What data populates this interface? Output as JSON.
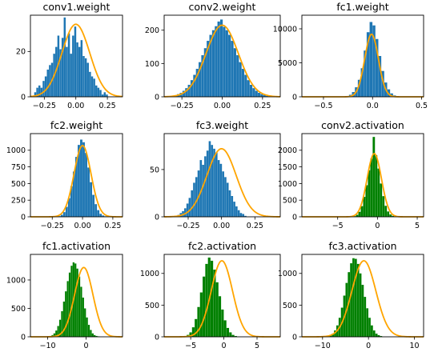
{
  "chart_data": [
    {
      "type": "bar",
      "title": "conv1.weight",
      "bar_color": "#1f77b4",
      "curve_color": "#ffa500",
      "xlim": [
        -0.36,
        0.37
      ],
      "ylim": [
        0,
        36
      ],
      "xticks": [
        -0.25,
        0.0,
        0.25
      ],
      "xtick_labels": [
        "−0.25",
        "0.00",
        "0.25"
      ],
      "yticks": [
        0,
        20
      ],
      "ytick_labels": [
        "0",
        "20"
      ],
      "bin_start": -0.33,
      "bin_width": 0.0167,
      "values": [
        2,
        4,
        5,
        4,
        7,
        9,
        12,
        14,
        15,
        19,
        22,
        27,
        21,
        26,
        35,
        22,
        28,
        19,
        27,
        31,
        24,
        22,
        25,
        18,
        17,
        15,
        11,
        9,
        8,
        5,
        4,
        3,
        1,
        2,
        1
      ],
      "curve": {
        "mean": 0.0,
        "std": 0.11,
        "peak": 32
      }
    },
    {
      "type": "bar",
      "title": "conv2.weight",
      "bar_color": "#1f77b4",
      "curve_color": "#ffa500",
      "xlim": [
        -0.36,
        0.36
      ],
      "ylim": [
        0,
        245
      ],
      "xticks": [
        -0.25,
        0.0,
        0.25
      ],
      "xtick_labels": [
        "−0.25",
        "0.00",
        "0.25"
      ],
      "yticks": [
        0,
        100,
        200
      ],
      "ytick_labels": [
        "0",
        "100",
        "200"
      ],
      "bin_start": -0.33,
      "bin_width": 0.0167,
      "values": [
        2,
        3,
        5,
        8,
        12,
        18,
        26,
        36,
        50,
        66,
        84,
        104,
        125,
        146,
        168,
        186,
        200,
        212,
        226,
        232,
        210,
        200,
        186,
        168,
        146,
        125,
        104,
        84,
        66,
        50,
        36,
        26,
        18,
        12,
        8,
        5,
        3,
        2,
        1
      ],
      "curve": {
        "mean": 0.0,
        "std": 0.1,
        "peak": 215
      }
    },
    {
      "type": "bar",
      "title": "fc1.weight",
      "bar_color": "#1f77b4",
      "curve_color": "#ffa500",
      "xlim": [
        -0.72,
        0.52
      ],
      "ylim": [
        0,
        12000
      ],
      "xticks": [
        -0.5,
        0.0,
        0.5
      ],
      "xtick_labels": [
        "−0.5",
        "0.0",
        "0.5"
      ],
      "yticks": [
        0,
        5000,
        10000
      ],
      "ytick_labels": [
        "0",
        "5000",
        "10000"
      ],
      "bin_start": -0.3,
      "bin_width": 0.03,
      "values": [
        50,
        120,
        300,
        700,
        1400,
        2500,
        4200,
        6800,
        9500,
        11000,
        10500,
        8500,
        6000,
        3800,
        2100,
        1100,
        500,
        200,
        80,
        30
      ],
      "curve": {
        "mean": -0.01,
        "std": 0.07,
        "peak": 9200
      }
    },
    {
      "type": "bar",
      "title": "fc2.weight",
      "bar_color": "#1f77b4",
      "curve_color": "#ffa500",
      "xlim": [
        -0.43,
        0.33
      ],
      "ylim": [
        0,
        1250
      ],
      "xticks": [
        -0.25,
        0.0,
        0.25
      ],
      "xtick_labels": [
        "−0.25",
        "0.00",
        "0.25"
      ],
      "yticks": [
        0,
        250,
        500,
        750,
        1000
      ],
      "ytick_labels": [
        "0",
        "250",
        "500",
        "750",
        "1000"
      ],
      "bin_start": -0.2,
      "bin_width": 0.02,
      "values": [
        10,
        30,
        70,
        150,
        280,
        460,
        680,
        900,
        1080,
        1160,
        1120,
        960,
        740,
        520,
        330,
        190,
        100,
        45,
        20,
        8
      ],
      "curve": {
        "mean": 0.0,
        "std": 0.07,
        "peak": 1070
      }
    },
    {
      "type": "bar",
      "title": "fc3.weight",
      "bar_color": "#1f77b4",
      "curve_color": "#ffa500",
      "xlim": [
        -0.43,
        0.44
      ],
      "ylim": [
        0,
        88
      ],
      "xticks": [
        -0.25,
        0.0,
        0.25
      ],
      "xtick_labels": [
        "−0.25",
        "0.00",
        "0.25"
      ],
      "yticks": [
        0,
        50
      ],
      "ytick_labels": [
        "0",
        "50"
      ],
      "bin_start": -0.33,
      "bin_width": 0.0167,
      "values": [
        2,
        4,
        6,
        9,
        14,
        20,
        28,
        36,
        42,
        49,
        60,
        55,
        64,
        70,
        80,
        76,
        72,
        68,
        60,
        56,
        48,
        42,
        36,
        28,
        22,
        16,
        11,
        7,
        4,
        3,
        1
      ],
      "curve": {
        "mean": 0.0,
        "std": 0.11,
        "peak": 72
      }
    },
    {
      "type": "bar",
      "title": "conv2.activation",
      "bar_color": "#008000",
      "curve_color": "#ffa500",
      "xlim": [
        -9.5,
        5.8
      ],
      "ylim": [
        0,
        2500
      ],
      "xticks": [
        -5,
        0,
        5
      ],
      "xtick_labels": [
        "−5",
        "0",
        "5"
      ],
      "yticks": [
        0,
        500,
        1000,
        1500,
        2000
      ],
      "ytick_labels": [
        "0",
        "500",
        "1000",
        "1500",
        "2000"
      ],
      "bin_start": -3.0,
      "bin_width": 0.3,
      "values": [
        20,
        60,
        150,
        320,
        600,
        950,
        1400,
        1750,
        2400,
        1850,
        1450,
        1000,
        620,
        330,
        160,
        70,
        30,
        10
      ],
      "curve": {
        "mean": -0.4,
        "std": 0.9,
        "peak": 1900
      }
    },
    {
      "type": "bar",
      "title": "fc1.activation",
      "bar_color": "#008000",
      "curve_color": "#ffa500",
      "xlim": [
        -14.5,
        9.5
      ],
      "ylim": [
        0,
        1450
      ],
      "xticks": [
        -10,
        0
      ],
      "xtick_labels": [
        "−10",
        "0"
      ],
      "yticks": [
        0,
        500,
        1000
      ],
      "ytick_labels": [
        "0",
        "500",
        "1000"
      ],
      "bin_start": -10.0,
      "bin_width": 0.5,
      "values": [
        5,
        15,
        30,
        60,
        110,
        190,
        300,
        450,
        620,
        800,
        980,
        1130,
        1250,
        1310,
        1290,
        1200,
        1060,
        880,
        690,
        500,
        340,
        210,
        120,
        60,
        30,
        15,
        8
      ],
      "curve": {
        "mean": -0.6,
        "std": 2.4,
        "peak": 1220
      }
    },
    {
      "type": "bar",
      "title": "fc2.activation",
      "bar_color": "#008000",
      "curve_color": "#ffa500",
      "xlim": [
        -9.0,
        8.5
      ],
      "ylim": [
        0,
        1300
      ],
      "xticks": [
        -5,
        0,
        5
      ],
      "xtick_labels": [
        "−5",
        "0",
        "5"
      ],
      "yticks": [
        0,
        500,
        1000
      ],
      "ytick_labels": [
        "0",
        "500",
        "1000"
      ],
      "bin_start": -6.0,
      "bin_width": 0.4,
      "values": [
        10,
        30,
        70,
        150,
        280,
        470,
        700,
        950,
        1150,
        1250,
        1200,
        1060,
        860,
        640,
        430,
        260,
        140,
        70,
        30,
        12
      ],
      "curve": {
        "mean": -0.3,
        "std": 1.6,
        "peak": 1200
      }
    },
    {
      "type": "bar",
      "title": "fc3.activation",
      "bar_color": "#008000",
      "curve_color": "#ffa500",
      "xlim": [
        -14.5,
        12.0
      ],
      "ylim": [
        0,
        1300
      ],
      "xticks": [
        -10,
        0,
        10
      ],
      "xtick_labels": [
        "−10",
        "0",
        "10"
      ],
      "yticks": [
        0,
        500,
        1000
      ],
      "ytick_labels": [
        "0",
        "500",
        "1000"
      ],
      "bin_start": -9.0,
      "bin_width": 0.5,
      "values": [
        10,
        25,
        50,
        100,
        180,
        300,
        460,
        650,
        850,
        1020,
        1160,
        1240,
        1230,
        1150,
        1000,
        820,
        630,
        450,
        300,
        180,
        100,
        50,
        25,
        12
      ],
      "curve": {
        "mean": -1.0,
        "std": 2.6,
        "peak": 1200
      }
    }
  ]
}
